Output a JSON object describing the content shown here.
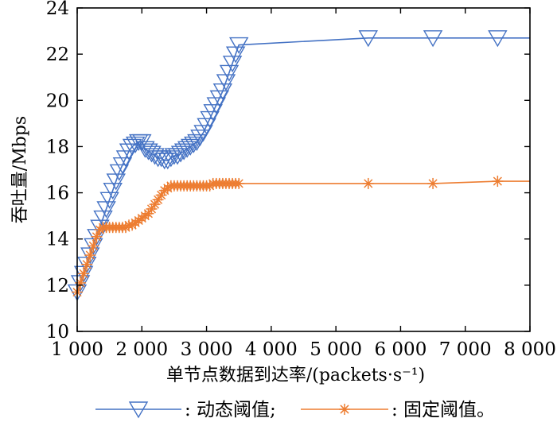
{
  "chart_data": {
    "type": "line",
    "xlabel": "单节点数据到达率/(packets·s⁻¹)",
    "ylabel": "吞吐量/Mbps",
    "xlim": [
      1000,
      8000
    ],
    "ylim": [
      10,
      24
    ],
    "xticks": [
      1000,
      2000,
      3000,
      4000,
      5000,
      6000,
      7000,
      8000
    ],
    "xtick_labels": [
      "1 000",
      "2 000",
      "3 000",
      "4 000",
      "5 000",
      "6 000",
      "7 000",
      "8 000"
    ],
    "yticks": [
      10,
      12,
      14,
      16,
      18,
      20,
      22,
      24
    ],
    "ytick_labels": [
      "10",
      "12",
      "14",
      "16",
      "18",
      "20",
      "22",
      "24"
    ],
    "grid": false,
    "legend_position": "bottom",
    "series": [
      {
        "name": ": 动态阈值;",
        "color": "#4472C4",
        "marker": "triangle-down",
        "line_x": [
          1000,
          1050,
          1100,
          1150,
          1200,
          1250,
          1300,
          1350,
          1400,
          1450,
          1500,
          1550,
          1600,
          1650,
          1700,
          1750,
          1800,
          1850,
          1900,
          1950,
          2000,
          2050,
          2100,
          2150,
          2200,
          2250,
          2300,
          2350,
          2400,
          2450,
          2500,
          2550,
          2600,
          2650,
          2700,
          2750,
          2800,
          2850,
          2900,
          2950,
          3000,
          3050,
          3100,
          3150,
          3200,
          3250,
          3300,
          3350,
          3400,
          3450,
          3500,
          5500,
          6500,
          7500,
          8000
        ],
        "line_y": [
          11.7,
          12.1,
          12.5,
          12.9,
          13.3,
          13.7,
          14.1,
          14.5,
          14.9,
          15.3,
          15.7,
          16.1,
          16.5,
          16.9,
          17.2,
          17.5,
          17.8,
          18.0,
          18.1,
          18.2,
          18.2,
          17.9,
          17.8,
          17.7,
          17.6,
          17.5,
          17.5,
          17.4,
          17.4,
          17.5,
          17.6,
          17.6,
          17.7,
          17.8,
          17.9,
          18.0,
          18.1,
          18.2,
          18.4,
          18.6,
          18.9,
          19.2,
          19.5,
          19.8,
          20.1,
          20.4,
          20.8,
          21.2,
          21.6,
          22.0,
          22.4,
          22.7,
          22.7,
          22.7,
          22.7
        ],
        "marker_x": [
          1000,
          1050,
          1100,
          1150,
          1200,
          1250,
          1300,
          1350,
          1400,
          1450,
          1500,
          1550,
          1600,
          1650,
          1700,
          1750,
          1800,
          1850,
          1900,
          1950,
          2000,
          2050,
          2100,
          2150,
          2200,
          2250,
          2300,
          2350,
          2400,
          2450,
          2500,
          2550,
          2600,
          2650,
          2700,
          2750,
          2800,
          2850,
          2900,
          2950,
          3000,
          3050,
          3100,
          3150,
          3200,
          3250,
          3300,
          3350,
          3400,
          3450,
          3500,
          5500,
          6500,
          7500
        ],
        "marker_y": [
          11.7,
          12.1,
          12.5,
          12.9,
          13.3,
          13.7,
          14.1,
          14.5,
          14.9,
          15.3,
          15.7,
          16.1,
          16.5,
          16.9,
          17.2,
          17.5,
          17.8,
          18.0,
          18.1,
          18.2,
          18.2,
          17.9,
          17.8,
          17.7,
          17.6,
          17.5,
          17.5,
          17.4,
          17.4,
          17.5,
          17.6,
          17.6,
          17.7,
          17.8,
          17.9,
          18.0,
          18.1,
          18.2,
          18.4,
          18.6,
          18.9,
          19.2,
          19.5,
          19.8,
          20.1,
          20.4,
          20.8,
          21.2,
          21.6,
          22.0,
          22.4,
          22.7,
          22.7,
          22.7
        ]
      },
      {
        "name": ": 固定阈值。",
        "color": "#ED7D31",
        "marker": "asterisk",
        "line_x": [
          1000,
          1050,
          1100,
          1150,
          1200,
          1250,
          1300,
          1350,
          1400,
          1450,
          1500,
          1550,
          1600,
          1650,
          1700,
          1750,
          1800,
          1850,
          1900,
          1950,
          2000,
          2050,
          2100,
          2150,
          2200,
          2250,
          2300,
          2350,
          2400,
          2450,
          2500,
          2550,
          2600,
          2650,
          2700,
          2750,
          2800,
          2850,
          2900,
          2950,
          3000,
          3050,
          3100,
          3150,
          3200,
          3250,
          3300,
          3350,
          3400,
          3450,
          3500,
          5500,
          6500,
          7500,
          8000
        ],
        "line_y": [
          11.7,
          12.1,
          12.5,
          12.9,
          13.3,
          13.7,
          14.1,
          14.4,
          14.5,
          14.5,
          14.5,
          14.5,
          14.5,
          14.5,
          14.5,
          14.5,
          14.6,
          14.6,
          14.7,
          14.8,
          14.9,
          15.0,
          15.1,
          15.3,
          15.5,
          15.7,
          15.9,
          16.1,
          16.2,
          16.3,
          16.3,
          16.3,
          16.3,
          16.3,
          16.3,
          16.3,
          16.3,
          16.3,
          16.3,
          16.3,
          16.3,
          16.3,
          16.4,
          16.4,
          16.4,
          16.4,
          16.4,
          16.4,
          16.4,
          16.4,
          16.4,
          16.4,
          16.4,
          16.5,
          16.5
        ],
        "marker_x": [
          1000,
          1050,
          1100,
          1150,
          1200,
          1250,
          1300,
          1350,
          1400,
          1450,
          1500,
          1550,
          1600,
          1650,
          1700,
          1750,
          1800,
          1850,
          1900,
          1950,
          2000,
          2050,
          2100,
          2150,
          2200,
          2250,
          2300,
          2350,
          2400,
          2450,
          2500,
          2550,
          2600,
          2650,
          2700,
          2750,
          2800,
          2850,
          2900,
          2950,
          3000,
          3050,
          3100,
          3150,
          3200,
          3250,
          3300,
          3350,
          3400,
          3450,
          3500,
          5500,
          6500,
          7500
        ],
        "marker_y": [
          11.7,
          12.1,
          12.5,
          12.9,
          13.3,
          13.7,
          14.1,
          14.4,
          14.5,
          14.5,
          14.5,
          14.5,
          14.5,
          14.5,
          14.5,
          14.5,
          14.6,
          14.6,
          14.7,
          14.8,
          14.9,
          15.0,
          15.1,
          15.3,
          15.5,
          15.7,
          15.9,
          16.1,
          16.2,
          16.3,
          16.3,
          16.3,
          16.3,
          16.3,
          16.3,
          16.3,
          16.3,
          16.3,
          16.3,
          16.3,
          16.3,
          16.3,
          16.4,
          16.4,
          16.4,
          16.4,
          16.4,
          16.4,
          16.4,
          16.4,
          16.4,
          16.4,
          16.4,
          16.5
        ]
      }
    ]
  }
}
